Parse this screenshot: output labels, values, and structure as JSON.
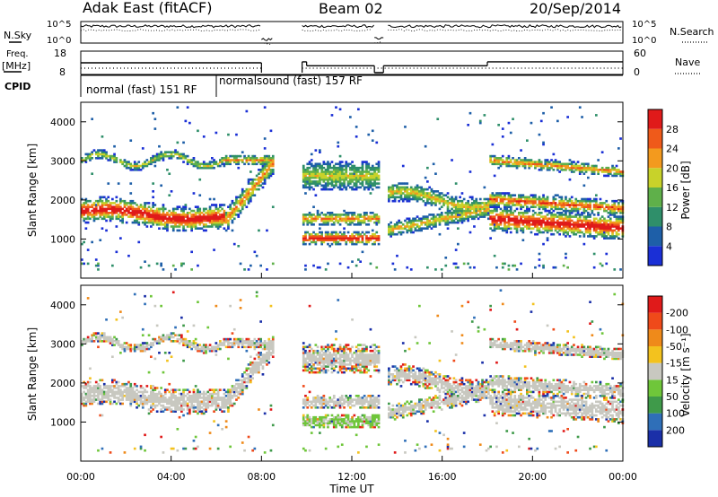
{
  "header": {
    "station": "Adak East (fitACF)",
    "beam": "Beam 02",
    "date": "20/Sep/2014"
  },
  "labels": {
    "nsky": "N.Sky",
    "nsearch": "N.Search",
    "freq": "Freq.",
    "freq_unit": "[MHz]",
    "nave": "Nave",
    "cpid": "CPID",
    "time_axis": "Time UT"
  },
  "cpid_segments": [
    {
      "label": "normal (fast) 151 RF",
      "start_h": 0,
      "end_h": 6
    },
    {
      "label": "normalsound (fast) 157 RF",
      "start_h": 6,
      "end_h": 24
    }
  ],
  "chart_data": [
    {
      "type": "line",
      "name": "noise_panel",
      "left_ticks": [
        "10^5",
        "10^0"
      ],
      "right_ticks": [
        "10^5",
        "10^0"
      ],
      "segments_h": [
        [
          0.0,
          8.0
        ],
        [
          8.0,
          8.5
        ],
        [
          9.8,
          13.0
        ],
        [
          13.0,
          13.4
        ],
        [
          13.6,
          24.0
        ]
      ],
      "levels": [
        0.72,
        0.1,
        0.72,
        0.15,
        0.72
      ]
    },
    {
      "type": "line",
      "name": "frequency_nave",
      "left_ticks": [
        "18",
        "8"
      ],
      "right_ticks": [
        "60",
        "0"
      ],
      "freq_steps": [
        [
          0.0,
          8.0,
          13.0
        ],
        [
          8.0,
          9.8,
          null
        ],
        [
          9.8,
          10.0,
          13.5
        ],
        [
          10.0,
          13.0,
          11.5
        ],
        [
          13.0,
          13.4,
          8.0
        ],
        [
          13.4,
          18.0,
          11.5
        ],
        [
          18.0,
          24.0,
          13.5
        ]
      ],
      "nave_level": 12
    },
    {
      "type": "heatmap",
      "title": "Power",
      "colorbar_label": "Power [dB]",
      "ylabel": "Slant Range [km]",
      "ylim": [
        0,
        4500
      ],
      "yticks": [
        1000,
        2000,
        3000,
        4000
      ],
      "colorbar_ticks": [
        "4",
        "8",
        "12",
        "16",
        "20",
        "24",
        "28"
      ],
      "colors": [
        "#1a2fd6",
        "#1e5fa8",
        "#2f8f6a",
        "#5fb04a",
        "#c8d22a",
        "#f39a1e",
        "#ef5a1a",
        "#e01a1a"
      ],
      "data_gaps_h": [
        [
          8.5,
          9.8
        ],
        [
          13.2,
          13.5
        ]
      ]
    },
    {
      "type": "heatmap",
      "title": "Velocity",
      "colorbar_label": "Velocity [m s⁻¹]",
      "ylabel": "Slant Range [km]",
      "ylim": [
        0,
        4500
      ],
      "yticks": [
        1000,
        2000,
        3000,
        4000
      ],
      "colorbar_ticks": [
        "200",
        "100",
        "50",
        "15",
        "-15",
        "-50",
        "-100",
        "-200"
      ],
      "colors": [
        "#1a2fa8",
        "#2f6fb8",
        "#3f9a4a",
        "#6fc63a",
        "#c8c8c0",
        "#f3c21e",
        "#ef8a1a",
        "#ef4a1a",
        "#e01a1a"
      ],
      "data_gaps_h": [
        [
          8.5,
          9.8
        ],
        [
          13.2,
          13.5
        ]
      ]
    }
  ],
  "time_axis": {
    "xlim": [
      0,
      24
    ],
    "ticks": [
      "00:00",
      "04:00",
      "08:00",
      "12:00",
      "16:00",
      "20:00",
      "00:00"
    ]
  }
}
